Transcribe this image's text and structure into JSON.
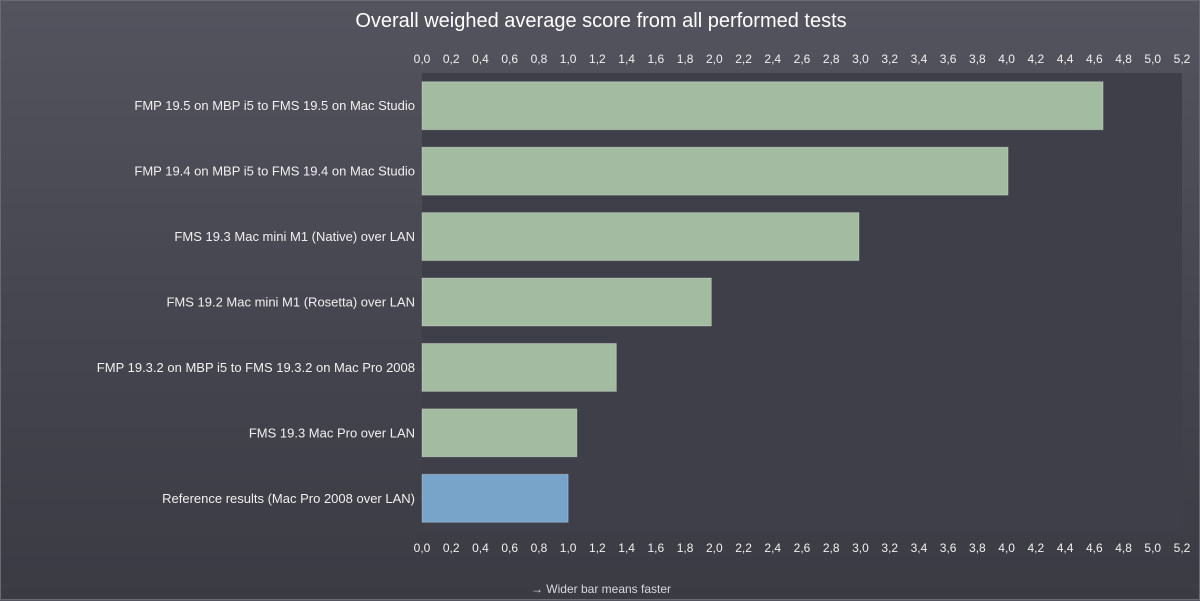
{
  "chart_data": {
    "type": "bar",
    "orientation": "horizontal",
    "title": "Overall weighed average score from all performed tests",
    "footnote": "→ Wider bar means faster",
    "xlim": [
      0,
      5.2
    ],
    "tick_step": 0.2,
    "tick_labels": [
      "0,0",
      "0,2",
      "0,4",
      "0,6",
      "0,8",
      "1,0",
      "1,2",
      "1,4",
      "1,6",
      "1,8",
      "2,0",
      "2,2",
      "2,4",
      "2,6",
      "2,8",
      "3,0",
      "3,2",
      "3,4",
      "3,6",
      "3,8",
      "4,0",
      "4,2",
      "4,4",
      "4,6",
      "4,8",
      "5,0",
      "5,2"
    ],
    "axis_labels_position": "top-and-bottom",
    "grid": false,
    "categories": [
      "FMP 19.5 on MBP i5 to FMS 19.5 on Mac Studio",
      "FMP 19.4 on MBP i5 to FMS 19.4 on Mac Studio",
      "FMS 19.3 Mac mini M1 (Native) over LAN",
      "FMS 19.2 Mac mini M1 (Rosetta) over LAN",
      "FMP 19.3.2 on MBP i5 to FMS 19.3.2 on Mac Pro 2008",
      "FMS 19.3 Mac Pro over LAN",
      "Reference results (Mac Pro 2008 over LAN)"
    ],
    "values": [
      4.66,
      4.01,
      2.99,
      1.98,
      1.33,
      1.06,
      1.0
    ],
    "colors": [
      "#a3bba0",
      "#a3bba0",
      "#a3bba0",
      "#a3bba0",
      "#a3bba0",
      "#a3bba0",
      "#79a4c9"
    ],
    "plot_background": "#3f3f49"
  }
}
